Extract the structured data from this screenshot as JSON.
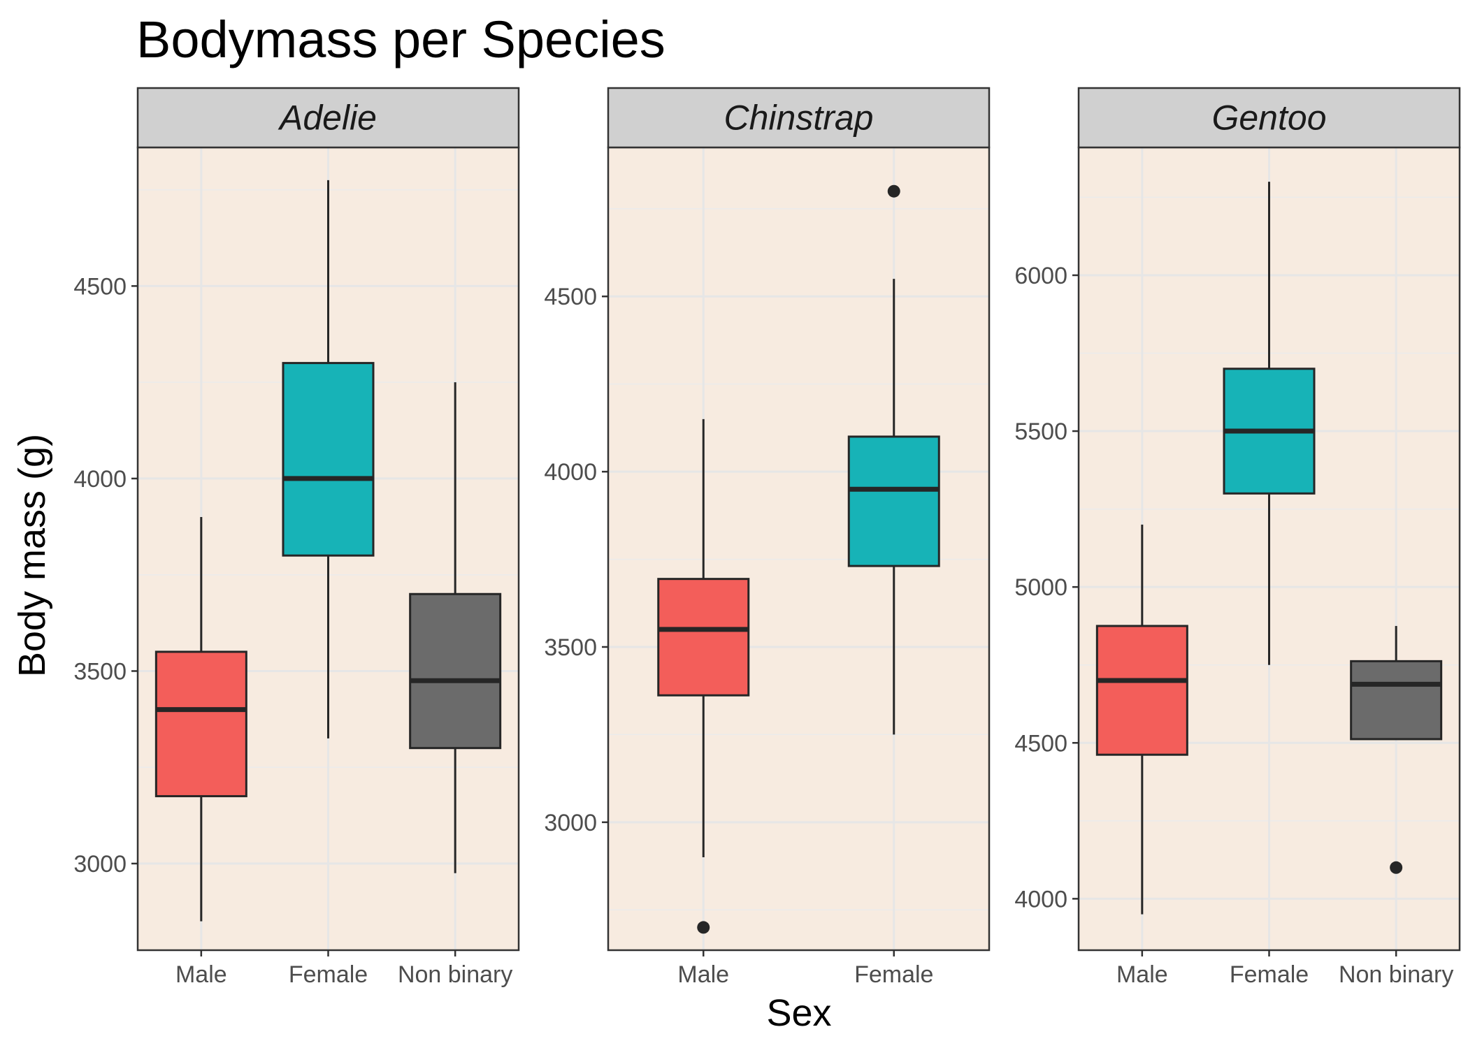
{
  "chart_data": {
    "type": "boxplot",
    "title": "Bodymass per Species",
    "xlabel": "Sex",
    "ylabel": "Body mass (g)",
    "fill_colors": {
      "Male": "#F35E5A",
      "Female": "#17B3B7",
      "Non binary": "#6B6B6B"
    },
    "panel_background": "#F7EBE0",
    "strip_background": "#D0D0D0",
    "grid": true,
    "legend": "none",
    "panels": [
      {
        "name": "Adelie",
        "ylim": [
          2775,
          4860
        ],
        "yticks": [
          3000,
          3500,
          4000,
          4500
        ],
        "categories": [
          "Male",
          "Female",
          "Non binary"
        ],
        "boxes": [
          {
            "category": "Male",
            "min": 2850,
            "q1": 3175,
            "median": 3400,
            "q3": 3550,
            "max": 3900,
            "outliers": []
          },
          {
            "category": "Female",
            "min": 3325,
            "q1": 3800,
            "median": 4000,
            "q3": 4300,
            "max": 4775,
            "outliers": []
          },
          {
            "category": "Non binary",
            "min": 2975,
            "q1": 3300,
            "median": 3475,
            "q3": 3700,
            "max": 4250,
            "outliers": []
          }
        ]
      },
      {
        "name": "Chinstrap",
        "ylim": [
          2635,
          4925
        ],
        "yticks": [
          3000,
          3500,
          4000,
          4500
        ],
        "categories": [
          "Male",
          "Female"
        ],
        "boxes": [
          {
            "category": "Male",
            "min": 2900,
            "q1": 3362,
            "median": 3550,
            "q3": 3694,
            "max": 4150,
            "outliers": [
              2700
            ]
          },
          {
            "category": "Female",
            "min": 3250,
            "q1": 3731,
            "median": 3950,
            "q3": 4100,
            "max": 4550,
            "outliers": [
              4800
            ]
          }
        ]
      },
      {
        "name": "Gentoo",
        "ylim": [
          3835,
          6410
        ],
        "yticks": [
          4000,
          4500,
          5000,
          5500,
          6000
        ],
        "categories": [
          "Male",
          "Female",
          "Non binary"
        ],
        "boxes": [
          {
            "category": "Male",
            "min": 3950,
            "q1": 4462,
            "median": 4700,
            "q3": 4875,
            "max": 5200,
            "outliers": []
          },
          {
            "category": "Female",
            "min": 4750,
            "q1": 5300,
            "median": 5500,
            "q3": 5700,
            "max": 6300,
            "outliers": []
          },
          {
            "category": "Non binary",
            "min": 4512,
            "q1": 4512,
            "median": 4688,
            "q3": 4762,
            "max": 4875,
            "outliers": [
              4100
            ]
          }
        ]
      }
    ]
  }
}
